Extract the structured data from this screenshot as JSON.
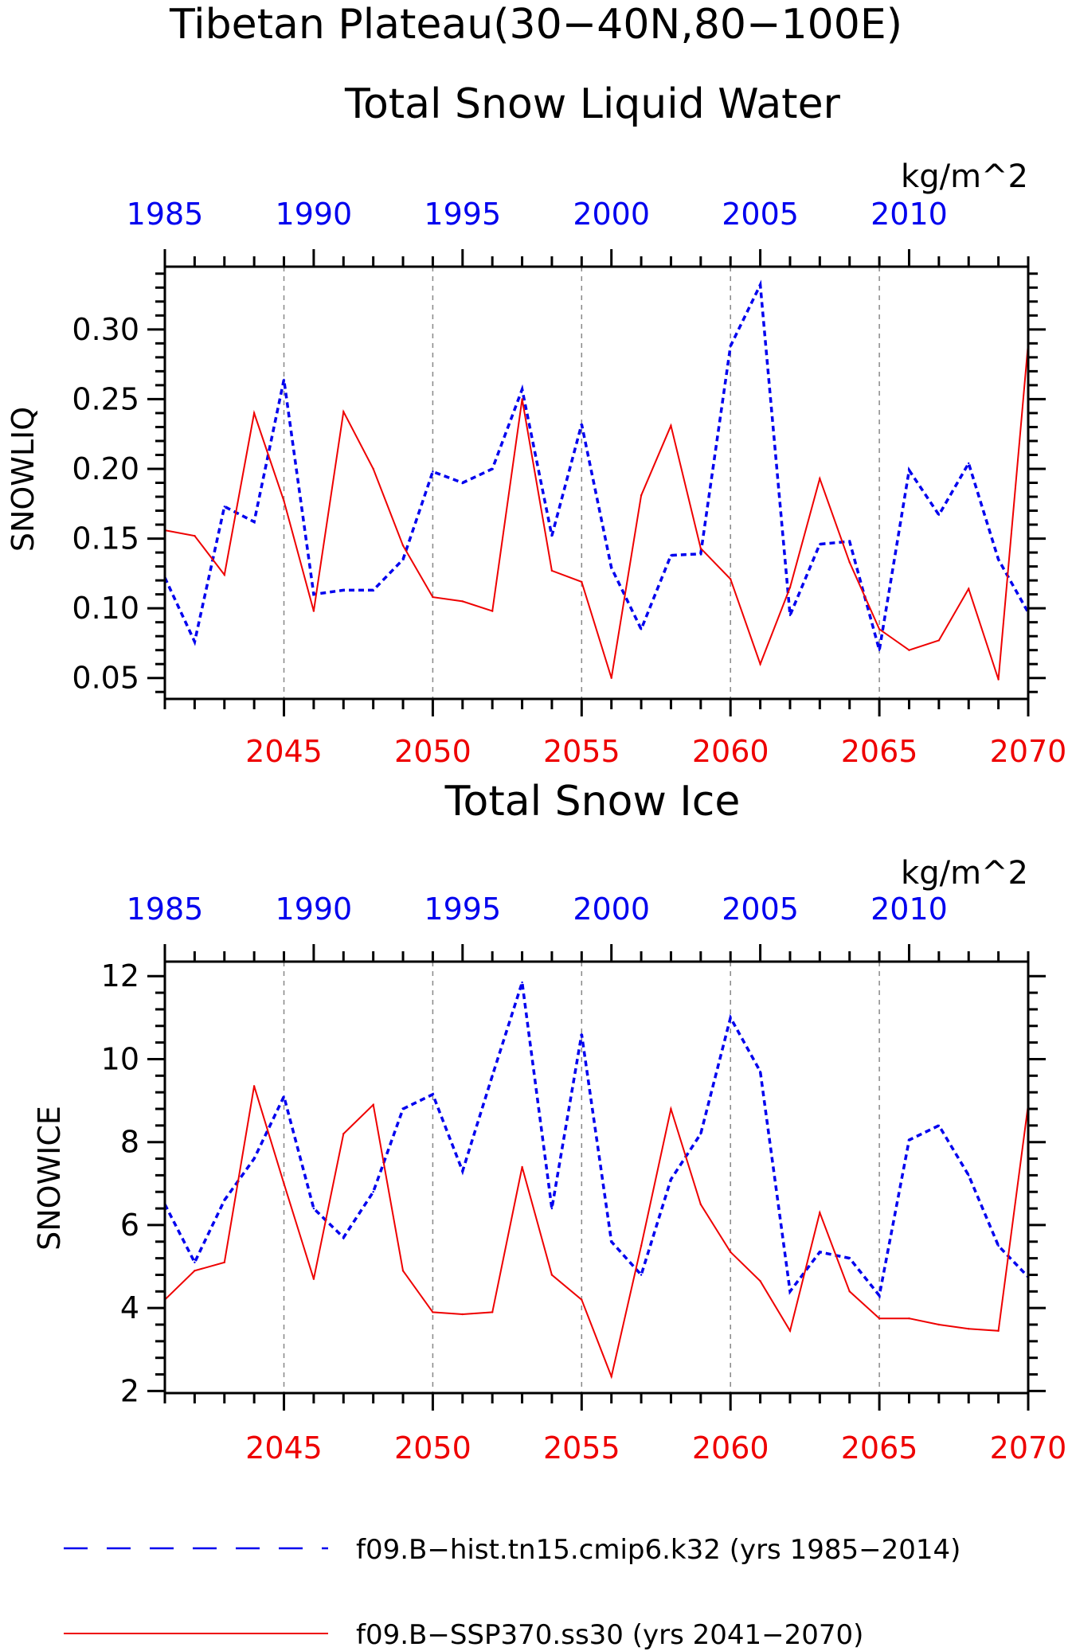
{
  "figure": {
    "title_line1": "Tibetan Plateau(30−40N,80−100E)",
    "colors": {
      "hist": "#0000ee",
      "ssp": "#ee0000",
      "axis": "#000000",
      "grid": "#888888"
    }
  },
  "legend": {
    "hist_label": "f09.B−hist.tn15.cmip6.k32 (yrs 1985−2014)",
    "ssp_label": "f09.B−SSP370.ss30 (yrs 2041−2070)"
  },
  "chart_data": [
    {
      "type": "line",
      "title": "Total Snow Liquid Water",
      "ylabel": "SNOWLIQ",
      "units": "kg/m^2",
      "ylim": [
        0.035,
        0.345
      ],
      "yticks": [
        0.05,
        0.1,
        0.15,
        0.2,
        0.25,
        0.3
      ],
      "ytick_labels": [
        "0.05",
        "0.10",
        "0.15",
        "0.20",
        "0.25",
        "0.30"
      ],
      "x_bottom": {
        "range": [
          2041,
          2070
        ],
        "ticks": [
          2045,
          2050,
          2055,
          2060,
          2065,
          2070
        ],
        "tick_labels": [
          "2045",
          "2050",
          "2055",
          "2060",
          "2065",
          "2070"
        ]
      },
      "x_top": {
        "range": [
          1985,
          2014
        ],
        "ticks": [
          1985,
          1990,
          1995,
          2000,
          2005,
          2010
        ],
        "tick_labels": [
          "1985",
          "1990",
          "1995",
          "2000",
          "2005",
          "2010"
        ]
      },
      "grid": "vertical dashed at bottom-axis major ticks",
      "series": [
        {
          "name": "f09.B−hist.tn15.cmip6.k32 (yrs 1985−2014)",
          "style": "dashed",
          "color": "#0000ee",
          "x": [
            1985,
            1986,
            1987,
            1988,
            1989,
            1990,
            1991,
            1992,
            1993,
            1994,
            1995,
            1996,
            1997,
            1998,
            1999,
            2000,
            2001,
            2002,
            2003,
            2004,
            2005,
            2006,
            2007,
            2008,
            2009,
            2010,
            2011,
            2012,
            2013,
            2014
          ],
          "values": [
            0.122,
            0.076,
            0.173,
            0.162,
            0.264,
            0.11,
            0.113,
            0.113,
            0.135,
            0.198,
            0.19,
            0.2,
            0.257,
            0.152,
            0.232,
            0.129,
            0.085,
            0.138,
            0.139,
            0.288,
            0.332,
            0.095,
            0.146,
            0.148,
            0.07,
            0.199,
            0.167,
            0.204,
            0.135,
            0.097
          ]
        },
        {
          "name": "f09.B−SSP370.ss30 (yrs 2041−2070)",
          "style": "solid",
          "color": "#ee0000",
          "x": [
            2041,
            2042,
            2043,
            2044,
            2045,
            2046,
            2047,
            2048,
            2049,
            2050,
            2051,
            2052,
            2053,
            2054,
            2055,
            2056,
            2057,
            2058,
            2059,
            2060,
            2061,
            2062,
            2063,
            2064,
            2065,
            2066,
            2067,
            2068,
            2069,
            2070
          ],
          "values": [
            0.156,
            0.152,
            0.124,
            0.24,
            0.177,
            0.098,
            0.241,
            0.2,
            0.145,
            0.108,
            0.105,
            0.098,
            0.25,
            0.127,
            0.119,
            0.05,
            0.181,
            0.231,
            0.143,
            0.121,
            0.06,
            0.115,
            0.193,
            0.133,
            0.085,
            0.07,
            0.077,
            0.114,
            0.049,
            0.29
          ]
        }
      ]
    },
    {
      "type": "line",
      "title": "Total Snow Ice",
      "ylabel": "SNOWICE",
      "units": "kg/m^2",
      "ylim": [
        1.95,
        12.35
      ],
      "yticks": [
        2,
        4,
        6,
        8,
        10,
        12
      ],
      "ytick_labels": [
        "2",
        "4",
        "6",
        "8",
        "10",
        "12"
      ],
      "x_bottom": {
        "range": [
          2041,
          2070
        ],
        "ticks": [
          2045,
          2050,
          2055,
          2060,
          2065,
          2070
        ],
        "tick_labels": [
          "2045",
          "2050",
          "2055",
          "2060",
          "2065",
          "2070"
        ]
      },
      "x_top": {
        "range": [
          1985,
          2014
        ],
        "ticks": [
          1985,
          1990,
          1995,
          2000,
          2005,
          2010
        ],
        "tick_labels": [
          "1985",
          "1990",
          "1995",
          "2000",
          "2005",
          "2010"
        ]
      },
      "grid": "vertical dashed at bottom-axis major ticks",
      "series": [
        {
          "name": "f09.B−hist.tn15.cmip6.k32 (yrs 1985−2014)",
          "style": "dashed",
          "color": "#0000ee",
          "x": [
            1985,
            1986,
            1987,
            1988,
            1989,
            1990,
            1991,
            1992,
            1993,
            1994,
            1995,
            1996,
            1997,
            1998,
            1999,
            2000,
            2001,
            2002,
            2003,
            2004,
            2005,
            2006,
            2007,
            2008,
            2009,
            2010,
            2011,
            2012,
            2013,
            2014
          ],
          "values": [
            6.5,
            5.1,
            6.6,
            7.6,
            9.1,
            6.4,
            5.7,
            6.8,
            8.8,
            9.15,
            7.3,
            9.6,
            11.85,
            6.4,
            10.6,
            5.6,
            4.8,
            7.1,
            8.2,
            11.0,
            9.7,
            4.4,
            5.35,
            5.2,
            4.3,
            8.05,
            8.4,
            7.2,
            5.5,
            4.75
          ]
        },
        {
          "name": "f09.B−SSP370.ss30 (yrs 2041−2070)",
          "style": "solid",
          "color": "#ee0000",
          "x": [
            2041,
            2042,
            2043,
            2044,
            2045,
            2046,
            2047,
            2048,
            2049,
            2050,
            2051,
            2052,
            2053,
            2054,
            2055,
            2056,
            2057,
            2058,
            2059,
            2060,
            2061,
            2062,
            2063,
            2064,
            2065,
            2066,
            2067,
            2068,
            2069,
            2070
          ],
          "values": [
            4.2,
            4.9,
            5.1,
            9.35,
            7.0,
            4.7,
            8.2,
            8.9,
            4.9,
            3.9,
            3.85,
            3.9,
            7.4,
            4.8,
            4.2,
            2.35,
            5.5,
            8.8,
            6.5,
            5.35,
            4.65,
            3.45,
            6.3,
            4.4,
            3.75,
            3.75,
            3.6,
            3.5,
            3.45,
            8.9
          ]
        }
      ]
    }
  ]
}
